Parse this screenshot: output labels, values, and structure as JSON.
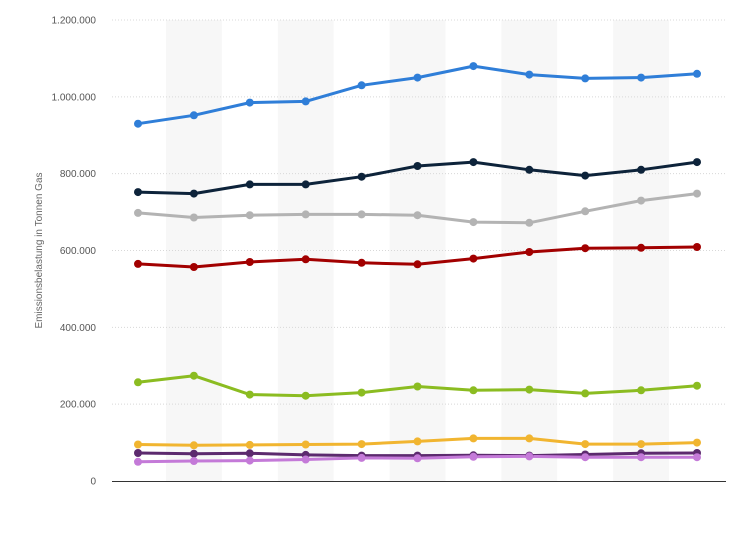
{
  "chart_data": {
    "type": "line",
    "title": "",
    "xlabel": "",
    "ylabel": "Emissionsbelastung in Tonnen Gas",
    "ylim": [
      0,
      1200000
    ],
    "y_ticks": [
      0,
      200000,
      400000,
      600000,
      800000,
      1000000,
      1200000
    ],
    "y_tick_labels": [
      "0",
      "200.000",
      "400.000",
      "600.000",
      "800.000",
      "1.000.000",
      "1.200.000"
    ],
    "x_tick_labels": [],
    "point_count": 11,
    "grid": true,
    "legend": "none",
    "series": [
      {
        "color": "#2f7ed8",
        "values": [
          930000,
          952000,
          985000,
          988000,
          1030000,
          1050000,
          1080000,
          1058000,
          1048000,
          1050000,
          1060000
        ]
      },
      {
        "color": "#0d233a",
        "values": [
          752000,
          748000,
          772000,
          772000,
          792000,
          820000,
          830000,
          810000,
          795000,
          810000,
          830000
        ]
      },
      {
        "color": "#b3b3b3",
        "values": [
          698000,
          686000,
          692000,
          694000,
          694000,
          692000,
          674000,
          672000,
          702000,
          730000,
          748000
        ]
      },
      {
        "color": "#a20000",
        "values": [
          565000,
          557000,
          570000,
          577000,
          568000,
          564000,
          579000,
          596000,
          606000,
          607000,
          609000
        ]
      },
      {
        "color": "#8bbc21",
        "values": [
          257000,
          274000,
          225000,
          222000,
          230000,
          246000,
          236000,
          238000,
          228000,
          236000,
          248000
        ]
      },
      {
        "color": "#f1b530",
        "values": [
          95000,
          93000,
          94000,
          95000,
          96000,
          103000,
          111000,
          111000,
          96000,
          96000,
          100000
        ]
      },
      {
        "color": "#5c2a6e",
        "values": [
          73000,
          71000,
          72000,
          68000,
          66000,
          66000,
          67000,
          66000,
          69000,
          72000,
          73000
        ]
      },
      {
        "color": "#c47ad8",
        "values": [
          50000,
          52000,
          53000,
          56000,
          60000,
          59000,
          63000,
          64000,
          62000,
          62000,
          62000
        ]
      }
    ]
  }
}
